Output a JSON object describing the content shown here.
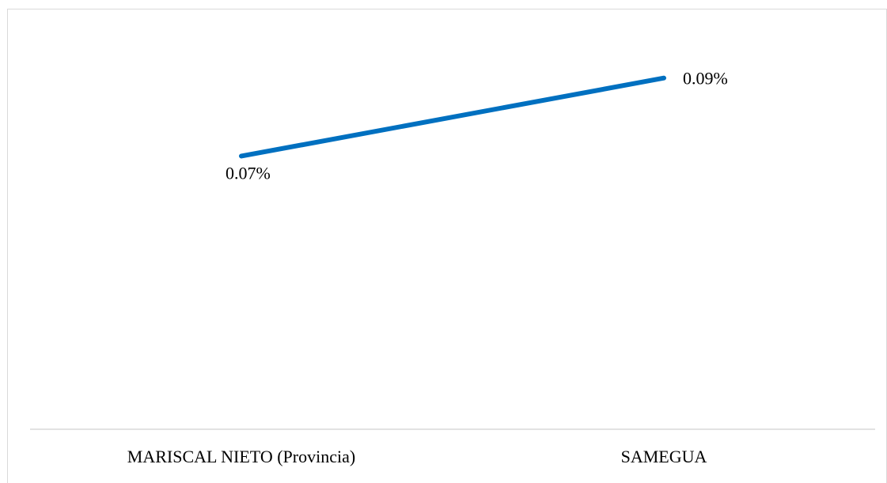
{
  "chart_data": {
    "type": "line",
    "categories": [
      "MARISCAL NIETO (Provincia)",
      "SAMEGUA"
    ],
    "series": [
      {
        "values": [
          0.07,
          0.09
        ],
        "labels": [
          "0.07%",
          "0.09%"
        ],
        "color": "#0070C0"
      }
    ],
    "ylim": [
      0,
      0.11
    ],
    "grid": false,
    "legend": "none"
  }
}
